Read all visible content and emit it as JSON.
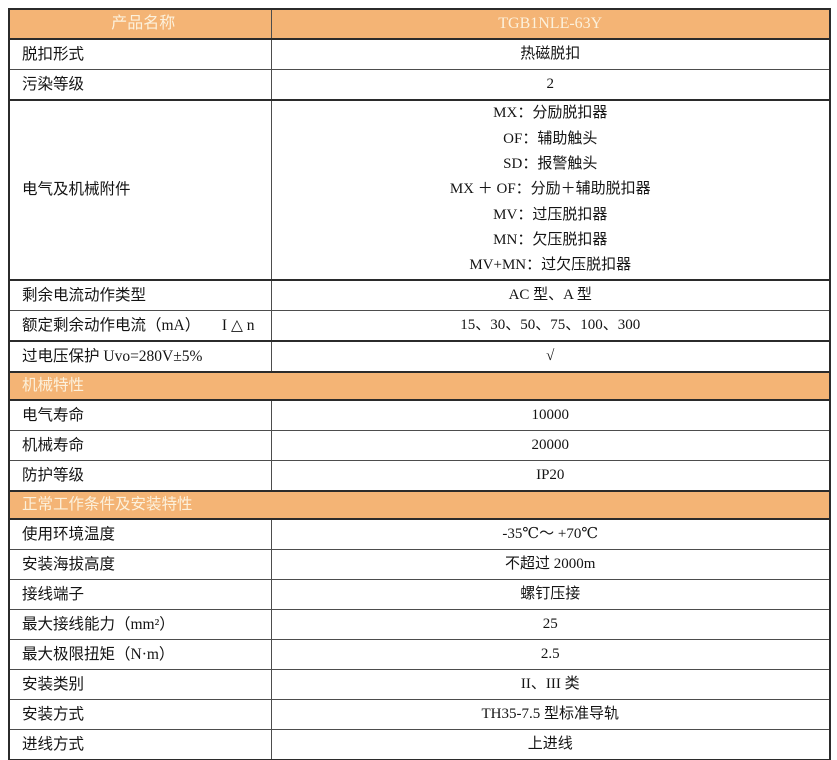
{
  "colors": {
    "accent_orange": "#f4b475",
    "header_text": "#fcf1dc",
    "body_text": "#141414",
    "border": "#4d4d4d"
  },
  "table": {
    "header": {
      "left": "产品名称",
      "right": "TGB1NLE-63Y"
    },
    "rows": {
      "r0": {
        "label": "脱扣形式",
        "value": "热磁脱扣"
      },
      "r1": {
        "label": "污染等级",
        "value": "2"
      },
      "r2": {
        "label": "电气及机械附件",
        "lines": [
          "MX：分励脱扣器",
          "OF：辅助触头",
          "SD：报警触头",
          "MX ＋ OF：分励＋辅助脱扣器",
          "MV：过压脱扣器",
          "MN：欠压脱扣器",
          "MV+MN：过欠压脱扣器"
        ]
      },
      "r3": {
        "label": "剩余电流动作类型",
        "value": "AC 型、A 型"
      },
      "r4": {
        "label": "额定剩余动作电流（mA）",
        "label2": "I △ n",
        "value": "15、30、50、75、100、300"
      },
      "r5": {
        "label": "过电压保护  Uvo=280V±5%",
        "value": "√"
      },
      "s1": {
        "label": "机械特性"
      },
      "r6": {
        "label": "电气寿命",
        "value": "10000"
      },
      "r7": {
        "label": "机械寿命",
        "value": "20000"
      },
      "r8": {
        "label": "防护等级",
        "value": "IP20"
      },
      "s2": {
        "label": "正常工作条件及安装特性"
      },
      "r9": {
        "label": "使用环境温度",
        "value": "-35℃～ +70℃"
      },
      "r10": {
        "label": "安装海拔高度",
        "value": "不超过 2000m"
      },
      "r11": {
        "label": "接线端子",
        "value": "螺钉压接"
      },
      "r12": {
        "label": "最大接线能力（mm²）",
        "value": "25"
      },
      "r13": {
        "label": "最大极限扭矩（N·m）",
        "value": "2.5"
      },
      "r14": {
        "label": "安装类别",
        "value": "II、III 类"
      },
      "r15": {
        "label": "安装方式",
        "value": "TH35-7.5 型标准导轨"
      },
      "r16": {
        "label": "进线方式",
        "value": "上进线"
      }
    }
  }
}
